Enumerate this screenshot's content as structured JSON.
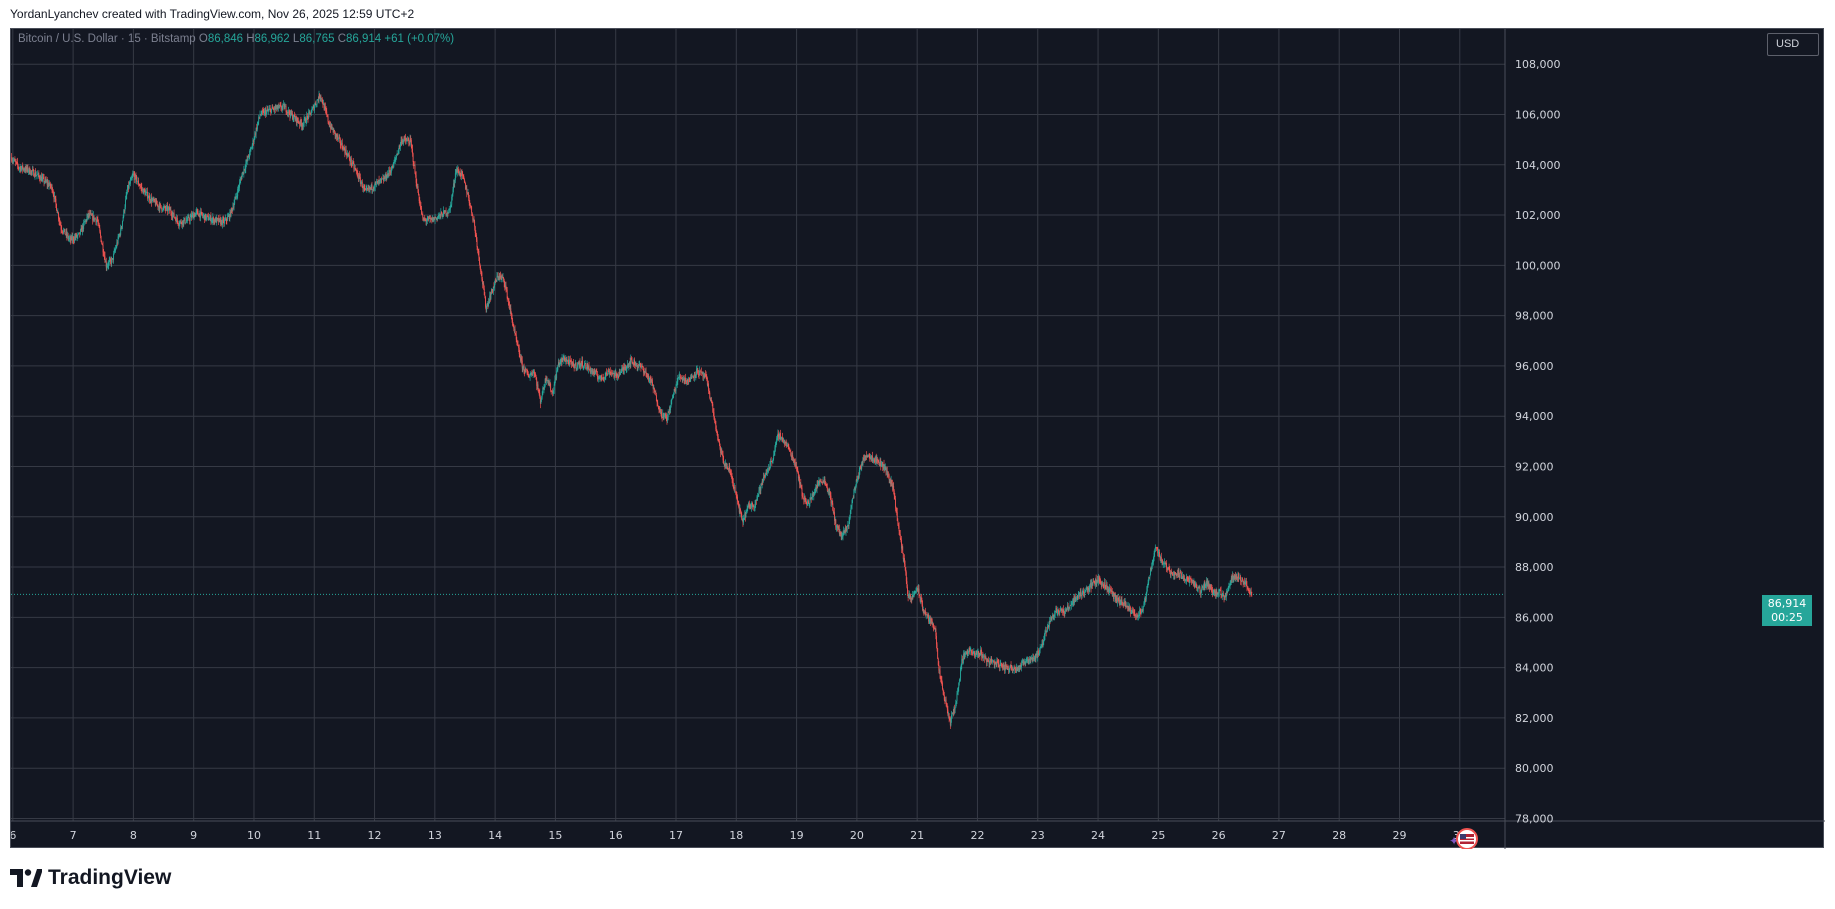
{
  "header": {
    "author_line": "YordanLyanchev created with TradingView.com, Nov 26, 2025 12:59 UTC+2"
  },
  "legend": {
    "symbol": "Bitcoin / U.S. Dollar · 15 · Bitstamp",
    "open_label": "O",
    "open": "86,846",
    "high_label": "H",
    "high": "86,962",
    "low_label": "L",
    "low": "86,765",
    "close_label": "C",
    "close": "86,914",
    "change": "+61 (+0.07%)"
  },
  "currency_button": {
    "label": "USD"
  },
  "last_price": {
    "price": "86,914",
    "countdown": "00:25"
  },
  "footer": {
    "brand": "TradingView"
  },
  "colors": {
    "background": "#131722",
    "up": "#26a69a",
    "down": "#ef5350",
    "grid": "#363a45",
    "axis_text": "#d1d4dc"
  },
  "chart_data": {
    "type": "candlestick",
    "interval": "15",
    "currency": "USD",
    "y_axis": {
      "ticks": [
        78000,
        80000,
        82000,
        84000,
        86000,
        88000,
        90000,
        92000,
        94000,
        96000,
        98000,
        100000,
        102000,
        104000,
        106000,
        108000
      ],
      "tick_labels": [
        "78,000",
        "80,000",
        "82,000",
        "84,000",
        "86,000",
        "88,000",
        "90,000",
        "92,000",
        "94,000",
        "96,000",
        "98,000",
        "100,000",
        "102,000",
        "104,000",
        "106,000",
        "108,000"
      ],
      "range": [
        77900,
        109400
      ],
      "position": "right"
    },
    "x_axis": {
      "ticks": [
        6,
        7,
        8,
        9,
        10,
        11,
        12,
        13,
        14,
        15,
        16,
        17,
        18,
        19,
        20,
        21,
        22,
        23,
        24,
        25,
        26,
        27,
        28,
        29,
        30
      ],
      "tick_labels": [
        "6",
        "7",
        "8",
        "9",
        "10",
        "11",
        "12",
        "13",
        "14",
        "15",
        "16",
        "17",
        "18",
        "19",
        "20",
        "21",
        "22",
        "23",
        "24",
        "25",
        "26",
        "27",
        "28",
        "29",
        "30"
      ],
      "range": [
        5.97,
        30.75
      ]
    },
    "grid": true,
    "last_price_line": 86914,
    "path": [
      [
        5.97,
        104300
      ],
      [
        6.1,
        103900
      ],
      [
        6.25,
        103800
      ],
      [
        6.4,
        103600
      ],
      [
        6.55,
        103300
      ],
      [
        6.65,
        103100
      ],
      [
        6.8,
        101500
      ],
      [
        6.95,
        101000
      ],
      [
        7.1,
        101200
      ],
      [
        7.25,
        102000
      ],
      [
        7.4,
        101800
      ],
      [
        7.55,
        100000
      ],
      [
        7.65,
        100200
      ],
      [
        7.8,
        101500
      ],
      [
        7.9,
        103000
      ],
      [
        8.0,
        103600
      ],
      [
        8.15,
        103000
      ],
      [
        8.3,
        102600
      ],
      [
        8.45,
        102300
      ],
      [
        8.6,
        102200
      ],
      [
        8.75,
        101700
      ],
      [
        8.9,
        101800
      ],
      [
        9.05,
        102100
      ],
      [
        9.2,
        101900
      ],
      [
        9.35,
        101800
      ],
      [
        9.5,
        101700
      ],
      [
        9.6,
        102000
      ],
      [
        9.7,
        102700
      ],
      [
        9.8,
        103600
      ],
      [
        9.95,
        104600
      ],
      [
        10.1,
        106000
      ],
      [
        10.3,
        106200
      ],
      [
        10.5,
        106300
      ],
      [
        10.65,
        105900
      ],
      [
        10.8,
        105600
      ],
      [
        10.95,
        106100
      ],
      [
        11.1,
        106800
      ],
      [
        11.25,
        105600
      ],
      [
        11.4,
        105000
      ],
      [
        11.55,
        104400
      ],
      [
        11.7,
        103700
      ],
      [
        11.85,
        102900
      ],
      [
        12.0,
        103200
      ],
      [
        12.15,
        103400
      ],
      [
        12.3,
        103900
      ],
      [
        12.45,
        105000
      ],
      [
        12.6,
        104900
      ],
      [
        12.7,
        103200
      ],
      [
        12.8,
        101800
      ],
      [
        12.95,
        101800
      ],
      [
        13.1,
        102000
      ],
      [
        13.25,
        102200
      ],
      [
        13.35,
        103800
      ],
      [
        13.45,
        103600
      ],
      [
        13.55,
        102800
      ],
      [
        13.65,
        101700
      ],
      [
        13.75,
        100000
      ],
      [
        13.85,
        98300
      ],
      [
        13.95,
        99000
      ],
      [
        14.05,
        99600
      ],
      [
        14.15,
        99400
      ],
      [
        14.25,
        98200
      ],
      [
        14.35,
        97000
      ],
      [
        14.45,
        96000
      ],
      [
        14.55,
        95600
      ],
      [
        14.65,
        95800
      ],
      [
        14.75,
        94600
      ],
      [
        14.85,
        95600
      ],
      [
        14.95,
        94900
      ],
      [
        15.05,
        96100
      ],
      [
        15.15,
        96300
      ],
      [
        15.3,
        96000
      ],
      [
        15.45,
        96100
      ],
      [
        15.6,
        95800
      ],
      [
        15.75,
        95500
      ],
      [
        15.9,
        95800
      ],
      [
        16.0,
        95600
      ],
      [
        16.1,
        95800
      ],
      [
        16.25,
        96200
      ],
      [
        16.45,
        95900
      ],
      [
        16.6,
        95300
      ],
      [
        16.75,
        94100
      ],
      [
        16.85,
        93900
      ],
      [
        16.95,
        94800
      ],
      [
        17.05,
        95600
      ],
      [
        17.2,
        95400
      ],
      [
        17.35,
        95800
      ],
      [
        17.5,
        95500
      ],
      [
        17.6,
        94400
      ],
      [
        17.7,
        93000
      ],
      [
        17.8,
        92100
      ],
      [
        17.9,
        91800
      ],
      [
        18.0,
        90800
      ],
      [
        18.1,
        89800
      ],
      [
        18.2,
        90400
      ],
      [
        18.3,
        90500
      ],
      [
        18.45,
        91500
      ],
      [
        18.6,
        92300
      ],
      [
        18.7,
        93300
      ],
      [
        18.85,
        92800
      ],
      [
        19.0,
        92000
      ],
      [
        19.1,
        90800
      ],
      [
        19.2,
        90500
      ],
      [
        19.35,
        91300
      ],
      [
        19.45,
        91500
      ],
      [
        19.55,
        90900
      ],
      [
        19.65,
        89700
      ],
      [
        19.75,
        89200
      ],
      [
        19.85,
        89600
      ],
      [
        19.95,
        91000
      ],
      [
        20.05,
        91900
      ],
      [
        20.15,
        92500
      ],
      [
        20.3,
        92300
      ],
      [
        20.45,
        92000
      ],
      [
        20.6,
        91200
      ],
      [
        20.7,
        89400
      ],
      [
        20.8,
        88000
      ],
      [
        20.85,
        86800
      ],
      [
        20.9,
        86700
      ],
      [
        21.0,
        87200
      ],
      [
        21.1,
        86300
      ],
      [
        21.2,
        85900
      ],
      [
        21.3,
        85600
      ],
      [
        21.35,
        84000
      ],
      [
        21.45,
        82800
      ],
      [
        21.55,
        81800
      ],
      [
        21.65,
        82700
      ],
      [
        21.75,
        84400
      ],
      [
        21.85,
        84700
      ],
      [
        21.95,
        84500
      ],
      [
        22.05,
        84600
      ],
      [
        22.15,
        84300
      ],
      [
        22.3,
        84200
      ],
      [
        22.45,
        84000
      ],
      [
        22.6,
        84000
      ],
      [
        22.7,
        84000
      ],
      [
        22.8,
        84300
      ],
      [
        22.95,
        84400
      ],
      [
        23.05,
        84700
      ],
      [
        23.15,
        85600
      ],
      [
        23.3,
        86300
      ],
      [
        23.45,
        86200
      ],
      [
        23.6,
        86700
      ],
      [
        23.8,
        87100
      ],
      [
        24.0,
        87500
      ],
      [
        24.15,
        87200
      ],
      [
        24.3,
        86700
      ],
      [
        24.45,
        86500
      ],
      [
        24.55,
        86200
      ],
      [
        24.65,
        86100
      ],
      [
        24.75,
        86300
      ],
      [
        24.85,
        87600
      ],
      [
        24.95,
        88800
      ],
      [
        25.05,
        88300
      ],
      [
        25.2,
        87800
      ],
      [
        25.35,
        87700
      ],
      [
        25.5,
        87500
      ],
      [
        25.6,
        87300
      ],
      [
        25.7,
        87000
      ],
      [
        25.8,
        87400
      ],
      [
        25.9,
        87000
      ],
      [
        26.0,
        87000
      ],
      [
        26.1,
        86800
      ],
      [
        26.2,
        87500
      ],
      [
        26.3,
        87700
      ],
      [
        26.45,
        87300
      ],
      [
        26.55,
        86914
      ]
    ]
  }
}
